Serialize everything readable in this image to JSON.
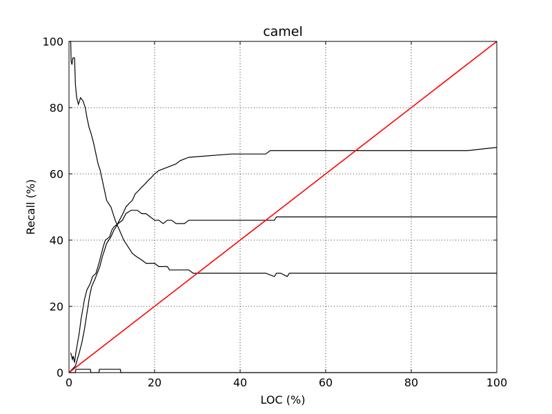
{
  "chart_data": {
    "type": "line",
    "title": "camel",
    "xlabel": "LOC (%)",
    "ylabel": "Recall (%)",
    "xlim": [
      0,
      100
    ],
    "ylim": [
      0,
      100
    ],
    "xticks": [
      0,
      20,
      40,
      60,
      80,
      100
    ],
    "yticks": [
      0,
      20,
      40,
      60,
      80,
      100
    ],
    "grid": true,
    "series": [
      {
        "color": "#000000",
        "points": [
          [
            0,
            100
          ],
          [
            0.4,
            100
          ],
          [
            0.5,
            94
          ],
          [
            0.7,
            93
          ],
          [
            0.9,
            95
          ],
          [
            1.3,
            95
          ],
          [
            1.5,
            87
          ],
          [
            1.8,
            83
          ],
          [
            2.2,
            81
          ],
          [
            2.7,
            83
          ],
          [
            3.3,
            82
          ],
          [
            3.8,
            80
          ],
          [
            4.2,
            77
          ],
          [
            4.7,
            74
          ],
          [
            5.2,
            72
          ],
          [
            5.8,
            69
          ],
          [
            6.3,
            66
          ],
          [
            6.8,
            63
          ],
          [
            7.3,
            61
          ],
          [
            7.8,
            58
          ],
          [
            8.3,
            55
          ],
          [
            8.8,
            52
          ],
          [
            9.8,
            50
          ],
          [
            10.8,
            46
          ],
          [
            11.8,
            43
          ],
          [
            12.8,
            40
          ],
          [
            13.8,
            38
          ],
          [
            14.8,
            36
          ],
          [
            15.8,
            35
          ],
          [
            17,
            34
          ],
          [
            18,
            33
          ],
          [
            20,
            33
          ],
          [
            21,
            32
          ],
          [
            23,
            32
          ],
          [
            23.5,
            31
          ],
          [
            28,
            31
          ],
          [
            29,
            30
          ],
          [
            46,
            30
          ],
          [
            48,
            29
          ],
          [
            48.5,
            30
          ],
          [
            49.5,
            30
          ],
          [
            51,
            29
          ],
          [
            51.5,
            30
          ],
          [
            100,
            30
          ]
        ]
      },
      {
        "color": "#000000",
        "points": [
          [
            0.4,
            6
          ],
          [
            0.8,
            4
          ],
          [
            1,
            5
          ],
          [
            1.3,
            3
          ],
          [
            1.6,
            6
          ],
          [
            2,
            9
          ],
          [
            2.4,
            12
          ],
          [
            2.8,
            16
          ],
          [
            3.2,
            19
          ],
          [
            3.6,
            22
          ],
          [
            4.2,
            25
          ],
          [
            5,
            27
          ],
          [
            5.5,
            29
          ],
          [
            6.3,
            30
          ],
          [
            7,
            33
          ],
          [
            7.6,
            36
          ],
          [
            8,
            38
          ],
          [
            8.5,
            40
          ],
          [
            9.5,
            41
          ],
          [
            10,
            43
          ],
          [
            10.5,
            44
          ],
          [
            11.5,
            45
          ],
          [
            12.5,
            46
          ],
          [
            13.3,
            48
          ],
          [
            14.5,
            49
          ],
          [
            16,
            49
          ],
          [
            17,
            48
          ],
          [
            18,
            48
          ],
          [
            19,
            47
          ],
          [
            20,
            46
          ],
          [
            21,
            46
          ],
          [
            22,
            45
          ],
          [
            23,
            46
          ],
          [
            24,
            46
          ],
          [
            25,
            45
          ],
          [
            27,
            45
          ],
          [
            28,
            46
          ],
          [
            48,
            46
          ],
          [
            48.5,
            47
          ],
          [
            100,
            47
          ]
        ]
      },
      {
        "color": "#000000",
        "points": [
          [
            0,
            0
          ],
          [
            1.5,
            2
          ],
          [
            2.4,
            6
          ],
          [
            3,
            9
          ],
          [
            3.6,
            13
          ],
          [
            4.2,
            18
          ],
          [
            4.8,
            23
          ],
          [
            5.3,
            26
          ],
          [
            6,
            28
          ],
          [
            6.6,
            30
          ],
          [
            7.2,
            32
          ],
          [
            7.8,
            35
          ],
          [
            8.3,
            37
          ],
          [
            8.8,
            39
          ],
          [
            9.3,
            40
          ],
          [
            9.8,
            41
          ],
          [
            10.5,
            43
          ],
          [
            11,
            44
          ],
          [
            11.8,
            46
          ],
          [
            12.6,
            48
          ],
          [
            13.3,
            50
          ],
          [
            14,
            51
          ],
          [
            14.8,
            52
          ],
          [
            15.5,
            54
          ],
          [
            16.3,
            55
          ],
          [
            17,
            56
          ],
          [
            17.8,
            57
          ],
          [
            18.5,
            58
          ],
          [
            19.3,
            59
          ],
          [
            20,
            60
          ],
          [
            21,
            61
          ],
          [
            23,
            62
          ],
          [
            25,
            63
          ],
          [
            26,
            64
          ],
          [
            28,
            65
          ],
          [
            38,
            66
          ],
          [
            46,
            66
          ],
          [
            47,
            67
          ],
          [
            93,
            67
          ],
          [
            100,
            68
          ]
        ]
      },
      {
        "color": "#000000",
        "points": [
          [
            0,
            0
          ],
          [
            1.5,
            0
          ],
          [
            1.6,
            1
          ],
          [
            5,
            1
          ],
          [
            5.1,
            0
          ],
          [
            7,
            0
          ],
          [
            7.1,
            1
          ],
          [
            12,
            1
          ],
          [
            12.1,
            0
          ],
          [
            100,
            0
          ]
        ]
      },
      {
        "color": "#ff0000",
        "points": [
          [
            0,
            0
          ],
          [
            100,
            100
          ]
        ]
      }
    ]
  }
}
